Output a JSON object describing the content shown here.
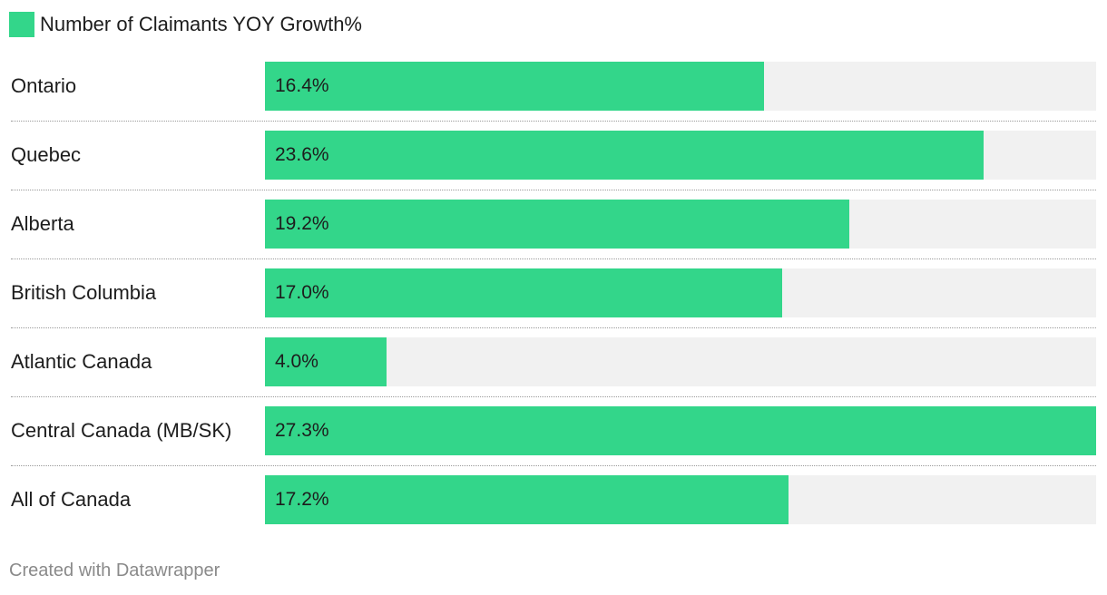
{
  "chart_data": {
    "type": "bar",
    "orientation": "horizontal",
    "series_name": "Number of Claimants YOY Growth%",
    "categories": [
      "Ontario",
      "Quebec",
      "Alberta",
      "British Columbia",
      "Atlantic Canada",
      "Central Canada (MB/SK)",
      "All of Canada"
    ],
    "values": [
      16.4,
      23.6,
      19.2,
      17.0,
      4.0,
      27.3,
      17.2
    ],
    "value_labels": [
      "16.4%",
      "23.6%",
      "19.2%",
      "17.0%",
      "4.0%",
      "27.3%",
      "17.2%"
    ],
    "xlim": [
      0,
      27.3
    ],
    "grid": false,
    "legend_position": "top-left",
    "bar_color": "#33d68a",
    "track_color": "#f1f1f1"
  },
  "legend": {
    "label": "Number of Claimants YOY Growth%",
    "color": "#33d68a"
  },
  "footer": {
    "credit": "Created with Datawrapper"
  }
}
